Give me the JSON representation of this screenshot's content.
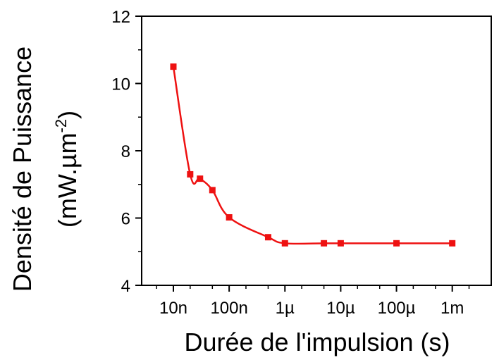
{
  "chart_data": {
    "type": "scatter",
    "xlabel": "Durée de l'impulsion (s)",
    "ylabel_line1": "Densité de Puissance",
    "ylabel_line2_pre": "(mW.µm",
    "ylabel_line2_sup": "-2",
    "ylabel_line2_post": ")",
    "x_scale": "log",
    "xlim": [
      2.7e-09,
      0.005
    ],
    "ylim": [
      4,
      12
    ],
    "x_ticks": [
      {
        "value": 1e-08,
        "label": "10n"
      },
      {
        "value": 1e-07,
        "label": "100n"
      },
      {
        "value": 1e-06,
        "label": "1µ"
      },
      {
        "value": 1e-05,
        "label": "10µ"
      },
      {
        "value": 0.0001,
        "label": "100µ"
      },
      {
        "value": 0.001,
        "label": "1m"
      }
    ],
    "y_ticks": [
      {
        "value": 4,
        "label": "4"
      },
      {
        "value": 6,
        "label": "6"
      },
      {
        "value": 8,
        "label": "8"
      },
      {
        "value": 10,
        "label": "10"
      },
      {
        "value": 12,
        "label": "12"
      }
    ],
    "series": [
      {
        "color": "#ee1111",
        "marker": "square",
        "line": "smooth",
        "x": [
          1e-08,
          2e-08,
          3e-08,
          5e-08,
          1e-07,
          5e-07,
          1e-06,
          5e-06,
          1e-05,
          0.0001,
          0.001
        ],
        "y": [
          10.5,
          7.3,
          7.17,
          6.83,
          6.02,
          5.43,
          5.25,
          5.25,
          5.25,
          5.25,
          5.25
        ]
      }
    ],
    "grid": false,
    "legend": "none"
  }
}
